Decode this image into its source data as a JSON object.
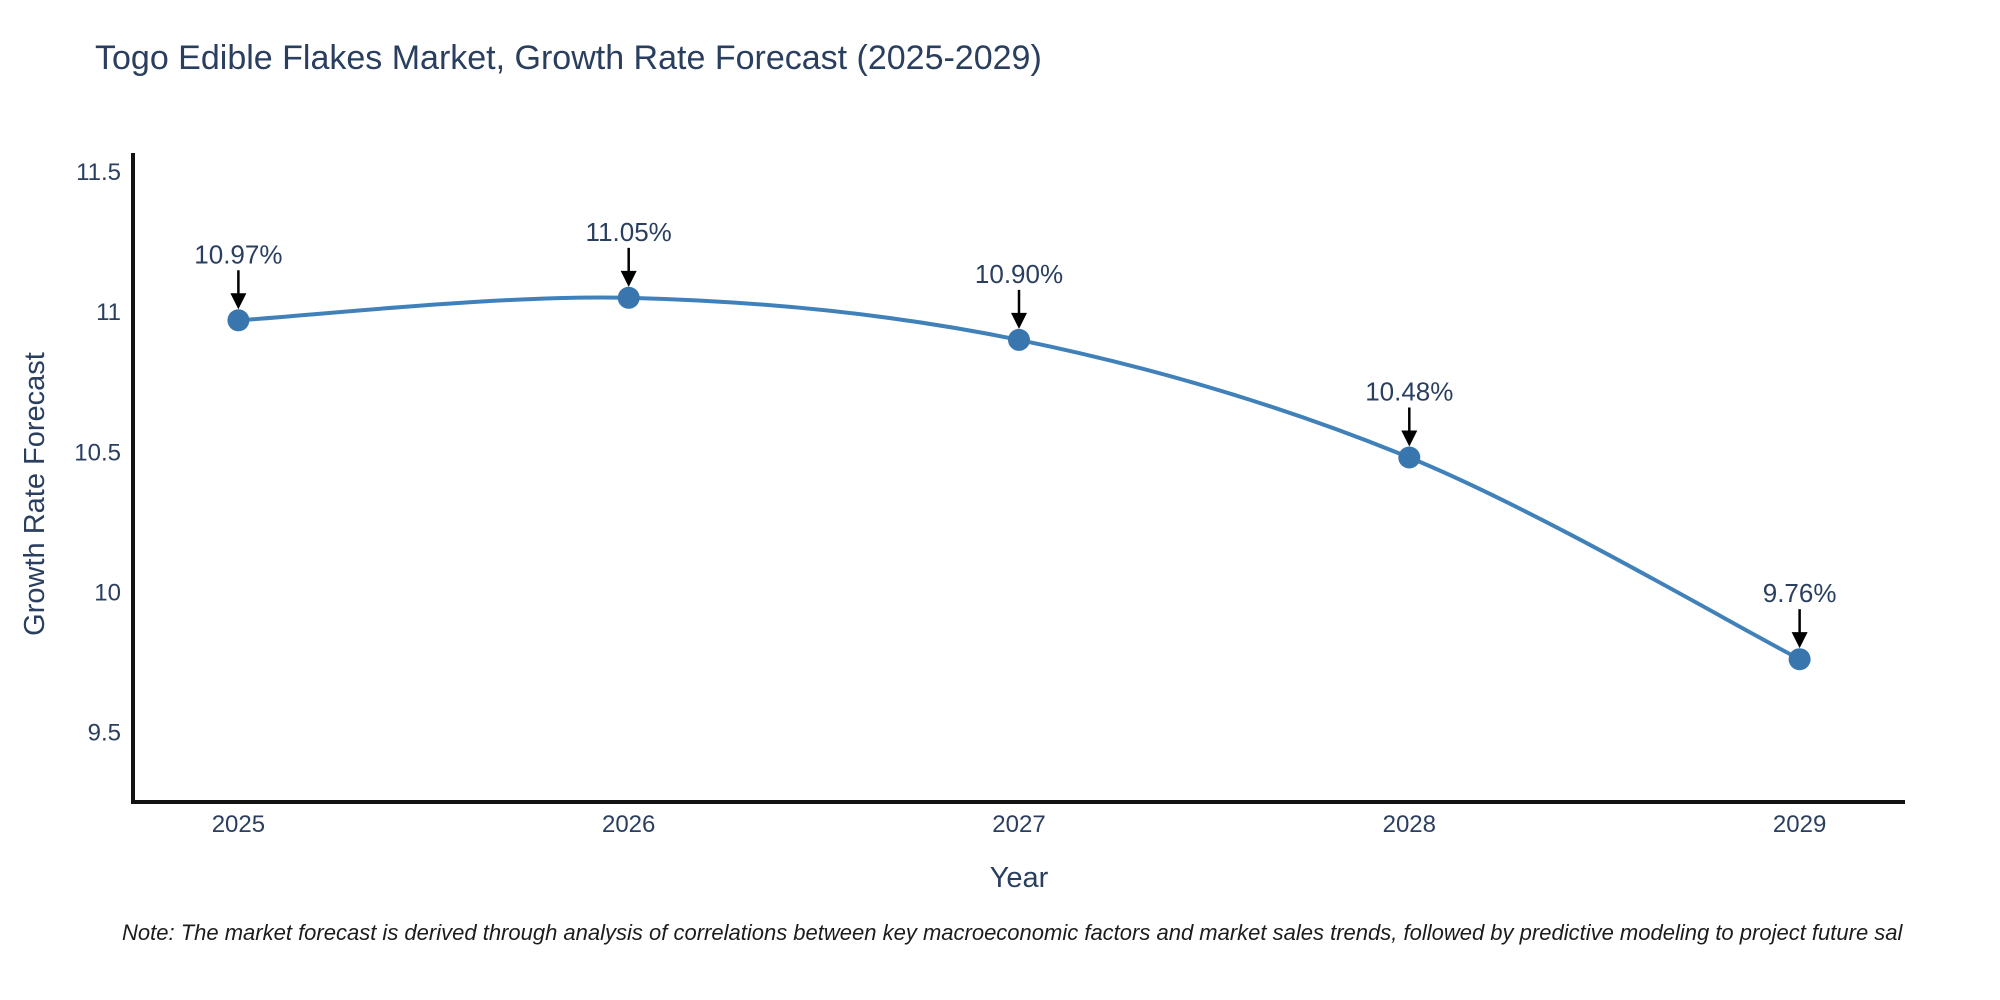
{
  "page": {
    "background": "#ffffff"
  },
  "chart_data": {
    "type": "line",
    "title": "Togo Edible Flakes Market, Growth Rate Forecast (2025-2029)",
    "xlabel": "Year",
    "ylabel": "Growth Rate Forecast",
    "x": [
      2025,
      2026,
      2027,
      2028,
      2029
    ],
    "values": [
      10.97,
      11.05,
      10.9,
      10.48,
      9.76
    ],
    "point_labels": [
      "10.97%",
      "11.05%",
      "10.90%",
      "10.48%",
      "9.76%"
    ],
    "x_tick_labels": [
      "2025",
      "2026",
      "2027",
      "2028",
      "2029"
    ],
    "y_ticks": [
      9.5,
      10,
      10.5,
      11,
      11.5
    ],
    "y_tick_labels": [
      "9.5",
      "10",
      "10.5",
      "11",
      "11.5"
    ],
    "xlim": [
      2024.73,
      2029.27
    ],
    "ylim": [
      9.25,
      11.56
    ],
    "line_shape": "spline",
    "grid": false,
    "legend": false,
    "colors": {
      "line": "#4181BA",
      "marker": "#3A76AE",
      "axis": "#121212",
      "text": "#2a3f5f",
      "arrow": "#000000"
    }
  },
  "note": {
    "text": "Note: The market forecast is derived through analysis of correlations between key macroeconomic factors and market sales trends, followed by predictive modeling to project future sal"
  }
}
